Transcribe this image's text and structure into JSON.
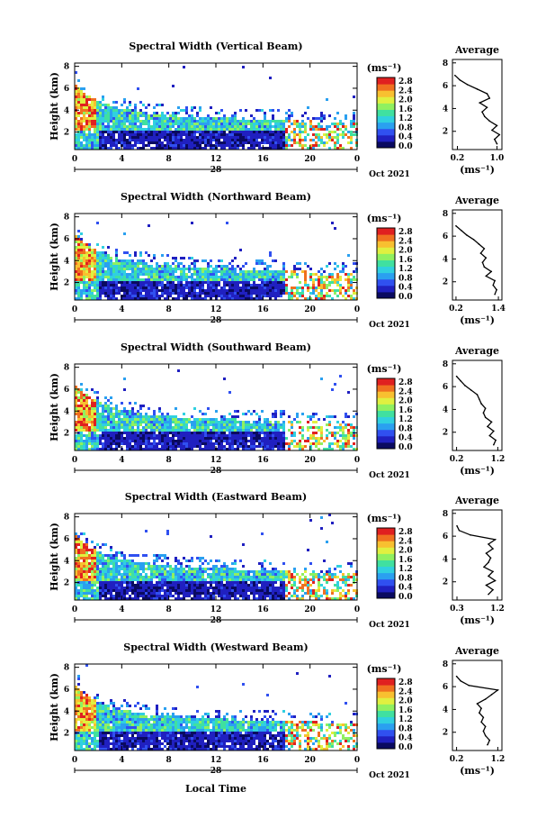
{
  "xlabel_bottom": "Local Time",
  "colorbar": {
    "unit": "(ms⁻¹)",
    "ticks": [
      "2.8",
      "2.4",
      "2.0",
      "1.6",
      "1.2",
      "0.8",
      "0.4",
      "0.0"
    ],
    "colors": [
      "#0a0a60",
      "#2020c0",
      "#3050f0",
      "#2aa0f0",
      "#30d0e0",
      "#40e0a0",
      "#90f060",
      "#e0f040",
      "#f8c030",
      "#f07020",
      "#e02020"
    ]
  },
  "chart_data": [
    {
      "type": "heatmap",
      "title": "Spectral Width (Vertical Beam)",
      "ylabel": "Height (km)",
      "yticks": [
        "2",
        "4",
        "6",
        "8"
      ],
      "ylim": [
        0.4,
        8.3
      ],
      "xticks": [
        "0",
        "4",
        "8",
        "12",
        "16",
        "20",
        "0"
      ],
      "xlim": [
        0,
        24
      ],
      "date_day": "28",
      "date_label": "Oct 2021",
      "value_range": [
        0.0,
        2.8
      ],
      "profile": {
        "title": "Average",
        "xlabel": "(ms⁻¹)",
        "xticks": [
          "0.2",
          "1.0"
        ],
        "yticks": [
          "2",
          "4",
          "6",
          "8"
        ],
        "xlim": [
          0.1,
          1.1
        ],
        "heights": [
          0.9,
          1.3,
          1.7,
          2.1,
          2.5,
          2.9,
          3.3,
          3.7,
          4.1,
          4.5,
          4.9,
          5.3,
          5.7,
          6.1,
          6.5,
          6.9
        ],
        "values": [
          1.0,
          0.95,
          1.05,
          0.9,
          1.0,
          0.85,
          0.75,
          0.7,
          0.8,
          0.65,
          0.85,
          0.8,
          0.6,
          0.4,
          0.25,
          0.15
        ]
      }
    },
    {
      "type": "heatmap",
      "title": "Spectral Width (Northward Beam)",
      "ylabel": "Height (km)",
      "yticks": [
        "2",
        "4",
        "6",
        "8"
      ],
      "ylim": [
        0.4,
        8.3
      ],
      "xticks": [
        "0",
        "4",
        "8",
        "12",
        "16",
        "20",
        "0"
      ],
      "xlim": [
        0,
        24
      ],
      "date_day": "28",
      "date_label": "Oct 2021",
      "value_range": [
        0.0,
        2.8
      ],
      "profile": {
        "title": "Average",
        "xlabel": "(ms⁻¹)",
        "xticks": [
          "0.2",
          "1.4"
        ],
        "yticks": [
          "2",
          "4",
          "6",
          "8"
        ],
        "xlim": [
          0.1,
          1.5
        ],
        "heights": [
          0.9,
          1.3,
          1.7,
          2.1,
          2.5,
          2.9,
          3.3,
          3.7,
          4.1,
          4.5,
          4.9,
          5.3,
          5.7,
          6.1,
          6.5,
          6.9
        ],
        "values": [
          1.3,
          1.35,
          1.25,
          1.3,
          1.05,
          1.2,
          1.0,
          0.95,
          1.05,
          0.9,
          1.0,
          0.85,
          0.7,
          0.5,
          0.35,
          0.2
        ]
      }
    },
    {
      "type": "heatmap",
      "title": "Spectral Width (Southward Beam)",
      "ylabel": "Height (km)",
      "yticks": [
        "2",
        "4",
        "6",
        "8"
      ],
      "ylim": [
        0.4,
        8.3
      ],
      "xticks": [
        "0",
        "4",
        "8",
        "12",
        "16",
        "20",
        "0"
      ],
      "xlim": [
        0,
        24
      ],
      "date_day": "28",
      "date_label": "Oct 2021",
      "value_range": [
        0.0,
        2.8
      ],
      "profile": {
        "title": "Average",
        "xlabel": "(ms⁻¹)",
        "xticks": [
          "0.2",
          "1.2"
        ],
        "yticks": [
          "2",
          "4",
          "6",
          "8"
        ],
        "xlim": [
          0.1,
          1.3
        ],
        "heights": [
          0.9,
          1.3,
          1.7,
          2.1,
          2.5,
          2.9,
          3.3,
          3.7,
          4.1,
          4.5,
          4.9,
          5.3,
          5.7,
          6.1,
          6.5,
          6.9
        ],
        "values": [
          1.1,
          1.15,
          1.0,
          1.1,
          0.95,
          1.05,
          0.9,
          0.85,
          0.9,
          0.8,
          0.75,
          0.7,
          0.55,
          0.4,
          0.3,
          0.2
        ]
      }
    },
    {
      "type": "heatmap",
      "title": "Spectral Width (Eastward Beam)",
      "ylabel": "Height (km)",
      "yticks": [
        "2",
        "4",
        "6",
        "8"
      ],
      "ylim": [
        0.4,
        8.3
      ],
      "xticks": [
        "0",
        "4",
        "8",
        "12",
        "16",
        "20",
        "0"
      ],
      "xlim": [
        0,
        24
      ],
      "date_day": "28",
      "date_label": "Oct 2021",
      "value_range": [
        0.0,
        2.8
      ],
      "profile": {
        "title": "Average",
        "xlabel": "(ms⁻¹)",
        "xticks": [
          "0.3",
          "1.2"
        ],
        "yticks": [
          "2",
          "4",
          "6",
          "8"
        ],
        "xlim": [
          0.2,
          1.3
        ],
        "heights": [
          0.9,
          1.3,
          1.7,
          2.1,
          2.5,
          2.9,
          3.3,
          3.7,
          4.1,
          4.5,
          4.9,
          5.3,
          5.7,
          6.1,
          6.5,
          6.9
        ],
        "values": [
          1.0,
          1.1,
          0.95,
          1.15,
          1.0,
          1.1,
          0.9,
          1.0,
          1.05,
          0.95,
          1.1,
          1.0,
          1.15,
          0.6,
          0.35,
          0.3
        ]
      }
    },
    {
      "type": "heatmap",
      "title": "Spectral Width (Westward Beam)",
      "ylabel": "Height (km)",
      "yticks": [
        "2",
        "4",
        "6",
        "8"
      ],
      "ylim": [
        0.4,
        8.3
      ],
      "xticks": [
        "0",
        "4",
        "8",
        "12",
        "16",
        "20",
        "0"
      ],
      "xlim": [
        0,
        24
      ],
      "date_day": "28",
      "date_label": "Oct 2021",
      "value_range": [
        0.0,
        2.8
      ],
      "profile": {
        "title": "Average",
        "xlabel": "(ms⁻¹)",
        "xticks": [
          "0.2",
          "1.2"
        ],
        "yticks": [
          "2",
          "4",
          "6",
          "8"
        ],
        "xlim": [
          0.1,
          1.3
        ],
        "heights": [
          0.9,
          1.3,
          1.7,
          2.1,
          2.5,
          2.9,
          3.3,
          3.7,
          4.1,
          4.5,
          4.9,
          5.3,
          5.7,
          6.1,
          6.5,
          6.9
        ],
        "values": [
          0.95,
          1.0,
          0.9,
          0.85,
          0.9,
          0.8,
          0.85,
          0.75,
          0.8,
          0.7,
          0.9,
          1.05,
          1.2,
          0.5,
          0.3,
          0.2
        ]
      }
    }
  ]
}
